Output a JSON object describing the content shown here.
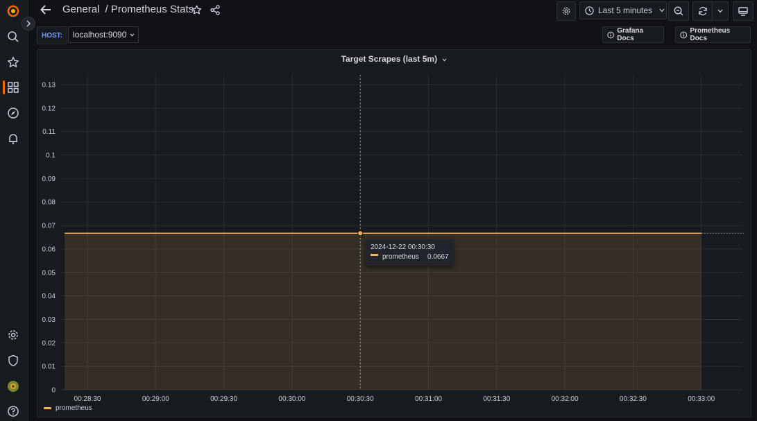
{
  "breadcrumb": {
    "folder": "General",
    "separator": "/",
    "dashboard": "Prometheus Stats"
  },
  "toolbar": {
    "time_range": "Last 5 minutes"
  },
  "variables": {
    "host_label": "HOST:",
    "host_value": "localhost:9090"
  },
  "links": {
    "grafana_docs": "Grafana Docs",
    "prometheus_docs": "Prometheus Docs"
  },
  "panel": {
    "title": "Target Scrapes (last 5m)"
  },
  "tooltip": {
    "time": "2024-12-22 00:30:30",
    "series": "prometheus",
    "value": "0.0667"
  },
  "colors": {
    "accent": "#f46800",
    "series": "#ffb357",
    "link_label": "#6e9fff"
  },
  "icons": [
    "grafana-logo-icon",
    "search-icon",
    "star-icon",
    "dashboards-icon",
    "explore-icon",
    "alert-bell-icon",
    "gear-icon",
    "shield-icon",
    "avatar",
    "help-icon",
    "back-arrow-icon",
    "share-icon",
    "clock-icon",
    "zoom-out-icon",
    "refresh-icon",
    "tv-icon",
    "info-icon"
  ],
  "chart_data": {
    "type": "line",
    "title": "Target Scrapes (last 5m)",
    "x_ticks": [
      "00:28:30",
      "00:29:00",
      "00:29:30",
      "00:30:00",
      "00:30:30",
      "00:31:00",
      "00:31:30",
      "00:32:00",
      "00:32:30",
      "00:33:00"
    ],
    "y_ticks": [
      "0",
      "0.01",
      "0.02",
      "0.03",
      "0.04",
      "0.05",
      "0.06",
      "0.07",
      "0.08",
      "0.09",
      "0.1",
      "0.11",
      "0.12",
      "0.13"
    ],
    "ylim": [
      0,
      0.13
    ],
    "grid": true,
    "series": [
      {
        "name": "prometheus",
        "color": "#ffb357",
        "fill": true,
        "points": [
          [
            "00:28:20",
            0.0667
          ],
          [
            "00:30:30",
            0.0667
          ],
          [
            "00:33:00",
            0.0667
          ]
        ]
      }
    ],
    "hover_x": "00:30:30",
    "legend": "bottom-left"
  }
}
